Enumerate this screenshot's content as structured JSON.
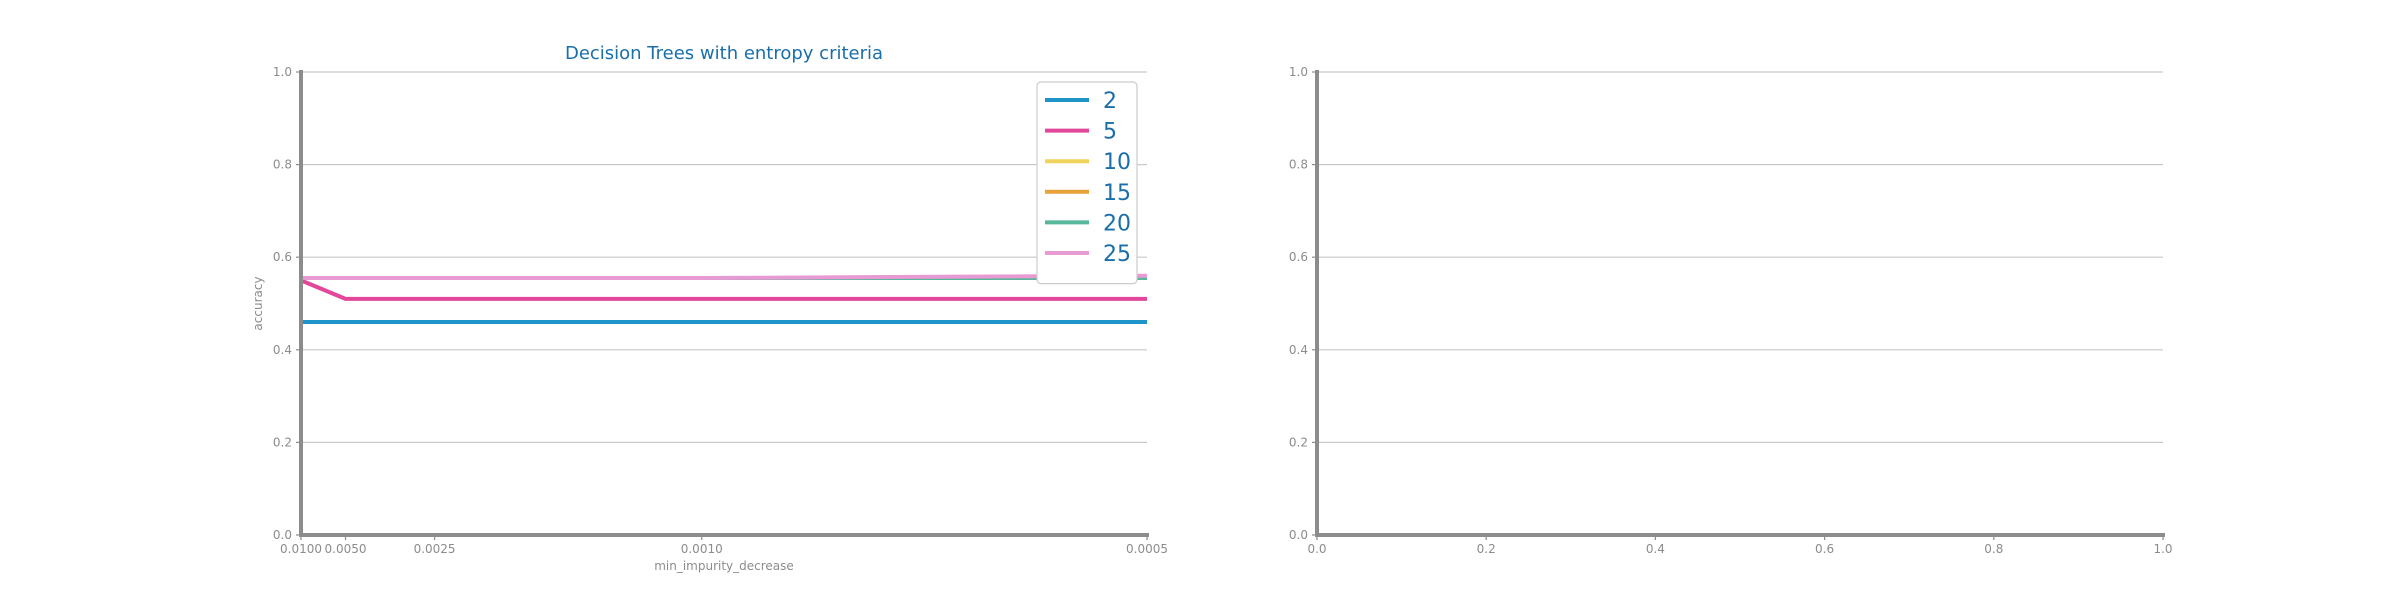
{
  "chart_data": [
    {
      "type": "line",
      "title": "Decision Trees with entropy criteria",
      "xlabel": "min_impurity_decrease",
      "ylabel": "accuracy",
      "x_scale": "reciprocal",
      "x": [
        0.01,
        0.005,
        0.0025,
        0.001,
        0.0005
      ],
      "x_tick_labels": [
        "0.0100",
        "0.0050",
        "0.0025",
        "0.0010",
        "0.0005"
      ],
      "ylim": [
        0.0,
        1.0
      ],
      "y_ticks": [
        "0.0",
        "0.2",
        "0.4",
        "0.6",
        "0.8",
        "1.0"
      ],
      "grid": "horizontal",
      "legend": "top-right",
      "series": [
        {
          "name": "2",
          "color": "#1f94c9",
          "values": [
            0.46,
            0.46,
            0.46,
            0.46,
            0.46
          ]
        },
        {
          "name": "5",
          "color": "#e2479a",
          "values": [
            0.55,
            0.51,
            0.51,
            0.51,
            0.51
          ]
        },
        {
          "name": "10",
          "color": "#f0d35a",
          "values": [
            0.555,
            0.555,
            0.555,
            0.555,
            0.555
          ]
        },
        {
          "name": "15",
          "color": "#e8a23a",
          "values": [
            0.555,
            0.555,
            0.555,
            0.555,
            0.555
          ]
        },
        {
          "name": "20",
          "color": "#58b69a",
          "values": [
            0.555,
            0.555,
            0.555,
            0.555,
            0.555
          ]
        },
        {
          "name": "25",
          "color": "#e79ad3",
          "values": [
            0.555,
            0.555,
            0.555,
            0.555,
            0.56
          ]
        }
      ]
    },
    {
      "type": "line",
      "title": "",
      "xlabel": "",
      "ylabel": "",
      "xlim": [
        0.0,
        1.0
      ],
      "ylim": [
        0.0,
        1.0
      ],
      "x_ticks": [
        "0.0",
        "0.2",
        "0.4",
        "0.6",
        "0.8",
        "1.0"
      ],
      "y_ticks": [
        "0.0",
        "0.2",
        "0.4",
        "0.6",
        "0.8",
        "1.0"
      ],
      "grid": "horizontal",
      "series": []
    }
  ]
}
